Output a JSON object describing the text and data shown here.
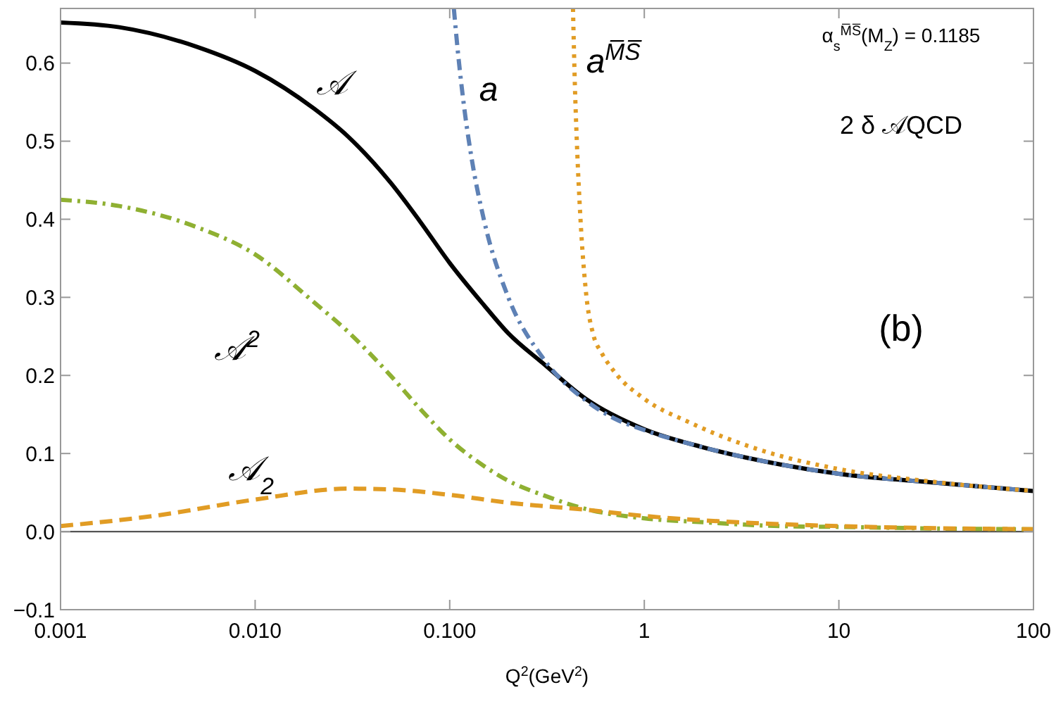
{
  "chart_data": {
    "type": "line",
    "xlabel": "Q$^{2}$(GeV$^{2}$)",
    "log": "x",
    "xlim": [
      0.001,
      100
    ],
    "ylim": [
      -0.1,
      0.67
    ],
    "xticks": [
      0.001,
      {
        "value": 0.01,
        "label": "0.010"
      },
      {
        "value": 0.1,
        "label": "0.100"
      },
      1,
      10,
      100
    ],
    "yticks": [
      {
        "value": -0.1,
        "label": "−0.1"
      },
      {
        "value": 0,
        "label": "0.0"
      },
      0.1,
      0.2,
      0.3,
      0.4,
      0.5,
      0.6
    ],
    "grid": false,
    "ref_lines": [
      {
        "axis": "y",
        "value": 0,
        "color": "#555555"
      }
    ],
    "annotations": [
      "α$_{s}$$^{M̅S̅}$(M$_{Z}$) = 0.1185",
      "2 δ 𝒜QCD",
      "(b)"
    ],
    "series": [
      {
        "name": "𝒜",
        "color": "#000000",
        "line_style": "solid",
        "x": [
          0.001,
          0.002,
          0.005,
          0.01,
          0.02,
          0.03,
          0.05,
          0.07,
          0.1,
          0.15,
          0.2,
          0.3,
          0.5,
          1,
          2,
          5,
          10,
          30,
          100
        ],
        "values": [
          0.652,
          0.646,
          0.621,
          0.59,
          0.542,
          0.506,
          0.446,
          0.398,
          0.344,
          0.29,
          0.254,
          0.216,
          0.17,
          0.131,
          0.108,
          0.086,
          0.074,
          0.063,
          0.052
        ]
      },
      {
        "name": "a",
        "color": "#5e81b5",
        "line_style": "dashdot",
        "x": [
          0.105,
          0.11,
          0.12,
          0.13,
          0.15,
          0.2,
          0.3,
          0.5,
          0.7,
          1,
          2,
          5,
          10,
          30,
          100
        ],
        "values": [
          0.67,
          0.616,
          0.534,
          0.476,
          0.399,
          0.3,
          0.223,
          0.168,
          0.145,
          0.13,
          0.108,
          0.086,
          0.074,
          0.063,
          0.052
        ]
      },
      {
        "name": "a$^{M̅S̅}$",
        "color": "#e19c24",
        "line_style": "dotted",
        "x": [
          0.43,
          0.44,
          0.45,
          0.47,
          0.5,
          0.55,
          0.6,
          0.7,
          1,
          1.7,
          4,
          10,
          30,
          100
        ],
        "values": [
          0.67,
          0.57,
          0.5,
          0.4,
          0.31,
          0.25,
          0.23,
          0.205,
          0.17,
          0.14,
          0.104,
          0.08,
          0.064,
          0.052
        ]
      },
      {
        "name": "𝒜$^{2}$",
        "color": "#8fb032",
        "line_style": "dashdot",
        "x": [
          0.001,
          0.002,
          0.005,
          0.01,
          0.02,
          0.03,
          0.05,
          0.07,
          0.1,
          0.15,
          0.2,
          0.3,
          0.5,
          1,
          2,
          5,
          10,
          30,
          100
        ],
        "values": [
          0.425,
          0.417,
          0.39,
          0.355,
          0.294,
          0.256,
          0.199,
          0.158,
          0.118,
          0.084,
          0.065,
          0.047,
          0.029,
          0.017,
          0.012,
          0.007,
          0.006,
          0.004,
          0.003
        ]
      },
      {
        "name": "𝒜$_{2}$",
        "color": "#e19c24",
        "line_style": "dashed",
        "x": [
          0.001,
          0.003,
          0.01,
          0.03,
          0.05,
          0.1,
          0.2,
          0.5,
          1,
          3,
          10,
          100
        ],
        "values": [
          0.007,
          0.02,
          0.041,
          0.055,
          0.054,
          0.047,
          0.037,
          0.028,
          0.02,
          0.012,
          0.007,
          0.003
        ]
      }
    ]
  }
}
